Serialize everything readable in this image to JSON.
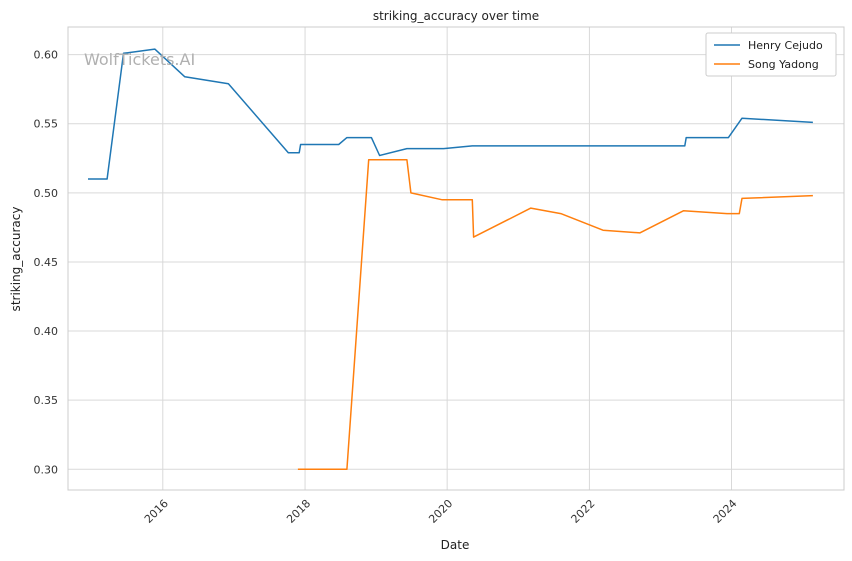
{
  "watermark": "WolfTickets.AI",
  "chart_data": {
    "type": "line",
    "title": "striking_accuracy over time",
    "xlabel": "Date",
    "ylabel": "striking_accuracy",
    "xlim": [
      "2014-09-01",
      "2025-08-01"
    ],
    "ylim": [
      0.285,
      0.62
    ],
    "x_ticks": [
      "2016-01-01",
      "2018-01-01",
      "2020-01-01",
      "2022-01-01",
      "2024-01-01"
    ],
    "x_tick_labels": [
      "2016",
      "2018",
      "2020",
      "2022",
      "2024"
    ],
    "y_ticks": [
      0.3,
      0.35,
      0.4,
      0.45,
      0.5,
      0.55,
      0.6
    ],
    "y_tick_labels": [
      "0.30",
      "0.35",
      "0.40",
      "0.45",
      "0.50",
      "0.55",
      "0.60"
    ],
    "grid": true,
    "legend_position": "top-right",
    "series": [
      {
        "name": "Henry Cejudo",
        "color": "#1f77b4",
        "points": [
          [
            "2014-12-13",
            0.51
          ],
          [
            "2015-03-21",
            0.51
          ],
          [
            "2015-06-13",
            0.601
          ],
          [
            "2015-11-21",
            0.604
          ],
          [
            "2016-04-23",
            0.584
          ],
          [
            "2016-12-03",
            0.579
          ],
          [
            "2017-10-07",
            0.529
          ],
          [
            "2017-12-02",
            0.529
          ],
          [
            "2017-12-09",
            0.535
          ],
          [
            "2018-06-23",
            0.535
          ],
          [
            "2018-08-04",
            0.54
          ],
          [
            "2018-12-08",
            0.54
          ],
          [
            "2019-01-19",
            0.527
          ],
          [
            "2019-06-08",
            0.532
          ],
          [
            "2019-12-14",
            0.532
          ],
          [
            "2020-05-09",
            0.534
          ],
          [
            "2023-05-06",
            0.534
          ],
          [
            "2023-05-13",
            0.54
          ],
          [
            "2023-12-16",
            0.54
          ],
          [
            "2024-02-24",
            0.554
          ],
          [
            "2025-02-22",
            0.551
          ]
        ]
      },
      {
        "name": "Song Yadong",
        "color": "#ff7f0e",
        "points": [
          [
            "2017-11-25",
            0.3
          ],
          [
            "2018-08-04",
            0.3
          ],
          [
            "2018-11-24",
            0.524
          ],
          [
            "2019-06-08",
            0.524
          ],
          [
            "2019-06-29",
            0.5
          ],
          [
            "2019-12-07",
            0.495
          ],
          [
            "2020-05-09",
            0.495
          ],
          [
            "2020-05-16",
            0.468
          ],
          [
            "2021-03-06",
            0.489
          ],
          [
            "2021-08-07",
            0.485
          ],
          [
            "2022-03-12",
            0.473
          ],
          [
            "2022-09-17",
            0.471
          ],
          [
            "2023-04-29",
            0.487
          ],
          [
            "2023-12-09",
            0.485
          ],
          [
            "2024-02-10",
            0.485
          ],
          [
            "2024-02-24",
            0.496
          ],
          [
            "2025-02-22",
            0.498
          ]
        ]
      }
    ]
  }
}
